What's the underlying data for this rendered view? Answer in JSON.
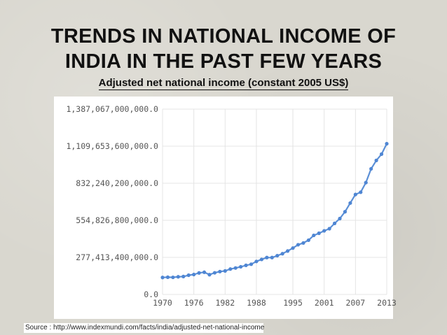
{
  "slide": {
    "title_line1": "TRENDS IN NATIONAL INCOME OF",
    "title_line2": "INDIA IN THE PAST FEW YEARS",
    "subtitle": "Adjusted net national income (constant 2005 US$)",
    "source": "Source : http://www.indexmundi.com/facts/india/adjusted-net-national-income"
  },
  "colors": {
    "line": "#5b8fd6",
    "marker": "#4f86d3",
    "grid": "#e4e4e4",
    "axis_text": "#555555"
  },
  "chart_data": {
    "type": "line",
    "title": "Adjusted net national income (constant 2005 US$)",
    "xlabel": "",
    "ylabel": "",
    "grid": true,
    "ylim": [
      0,
      1387067000000
    ],
    "xlim": [
      1970,
      2013
    ],
    "x_ticks": [
      1970,
      1976,
      1982,
      1988,
      1995,
      2001,
      2007,
      2013
    ],
    "x_tick_labels": [
      "1970",
      "1976",
      "1982",
      "1988",
      "1995",
      "2001",
      "2007",
      "2013"
    ],
    "y_ticks": [
      0,
      277413400000,
      554826800000,
      832240200000,
      1109653600000,
      1387067000000
    ],
    "y_tick_labels": [
      "0.0",
      "277,413,400,000.0",
      "554,826,800,000.0",
      "832,240,200,000.0",
      "1,109,653,600,000.0",
      "1,387,067,000,000.0"
    ],
    "series": [
      {
        "x": [
          1970,
          1971,
          1972,
          1973,
          1974,
          1975,
          1976,
          1977,
          1978,
          1979,
          1980,
          1981,
          1982,
          1983,
          1984,
          1985,
          1986,
          1987,
          1988,
          1989,
          1990,
          1991,
          1992,
          1993,
          1994,
          1995,
          1996,
          1997,
          1998,
          1999,
          2000,
          2001,
          2002,
          2003,
          2004,
          2005,
          2006,
          2007,
          2008,
          2009,
          2010,
          2011,
          2012,
          2013
        ],
        "values": [
          127000000000,
          129000000000,
          128000000000,
          132000000000,
          134000000000,
          144000000000,
          149000000000,
          161000000000,
          166000000000,
          148000000000,
          162000000000,
          171000000000,
          176000000000,
          190000000000,
          198000000000,
          207000000000,
          218000000000,
          226000000000,
          247000000000,
          262000000000,
          276000000000,
          276000000000,
          290000000000,
          305000000000,
          325000000000,
          347000000000,
          372000000000,
          385000000000,
          406000000000,
          442000000000,
          458000000000,
          476000000000,
          492000000000,
          532000000000,
          568000000000,
          619000000000,
          684000000000,
          748000000000,
          765000000000,
          837000000000,
          940000000000,
          1003000000000,
          1050000000000,
          1128000000000
        ]
      }
    ]
  }
}
